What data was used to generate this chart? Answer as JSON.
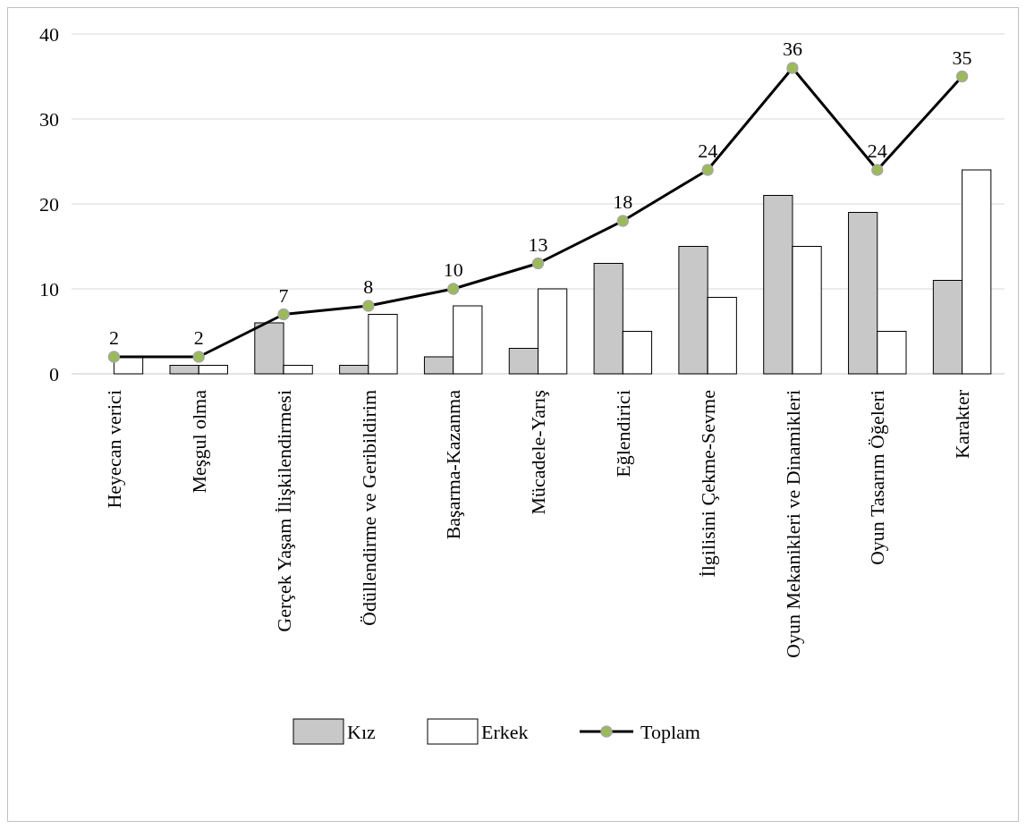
{
  "chart_data": {
    "type": "bar",
    "categories": [
      "Heyecan verici",
      "Meşgul olma",
      "Gerçek Yaşam İlişkilendirmesi",
      "Ödüllendirme ve Geribildirim",
      "Başarma-Kazanma",
      "Mücadele-Yarış",
      "Eğlendirici",
      "İlgilisini Çekme-Sevme",
      "Oyun Mekanikleri ve Dinamikleri",
      "Oyun Tasarım Öğeleri",
      "Karakter"
    ],
    "series": [
      {
        "name": "Kız",
        "color": "#c8c8c8",
        "values": [
          0,
          1,
          6,
          1,
          2,
          3,
          13,
          15,
          21,
          19,
          11
        ]
      },
      {
        "name": "Erkek",
        "color": "#ffffff",
        "values": [
          2,
          1,
          1,
          7,
          8,
          10,
          5,
          9,
          15,
          5,
          24
        ]
      },
      {
        "name": "Toplam",
        "type": "line",
        "color": "#000000",
        "values": [
          2,
          2,
          7,
          8,
          10,
          13,
          18,
          24,
          36,
          24,
          35
        ],
        "value_labels": [
          "2",
          "2",
          "7",
          "8",
          "10",
          "13",
          "18",
          "24",
          "36",
          "24",
          "35"
        ]
      }
    ],
    "ylim": [
      0,
      40
    ],
    "yticks": [
      0,
      10,
      20,
      30,
      40
    ],
    "grid": "y",
    "legend": "bottom",
    "marker": "circle"
  }
}
